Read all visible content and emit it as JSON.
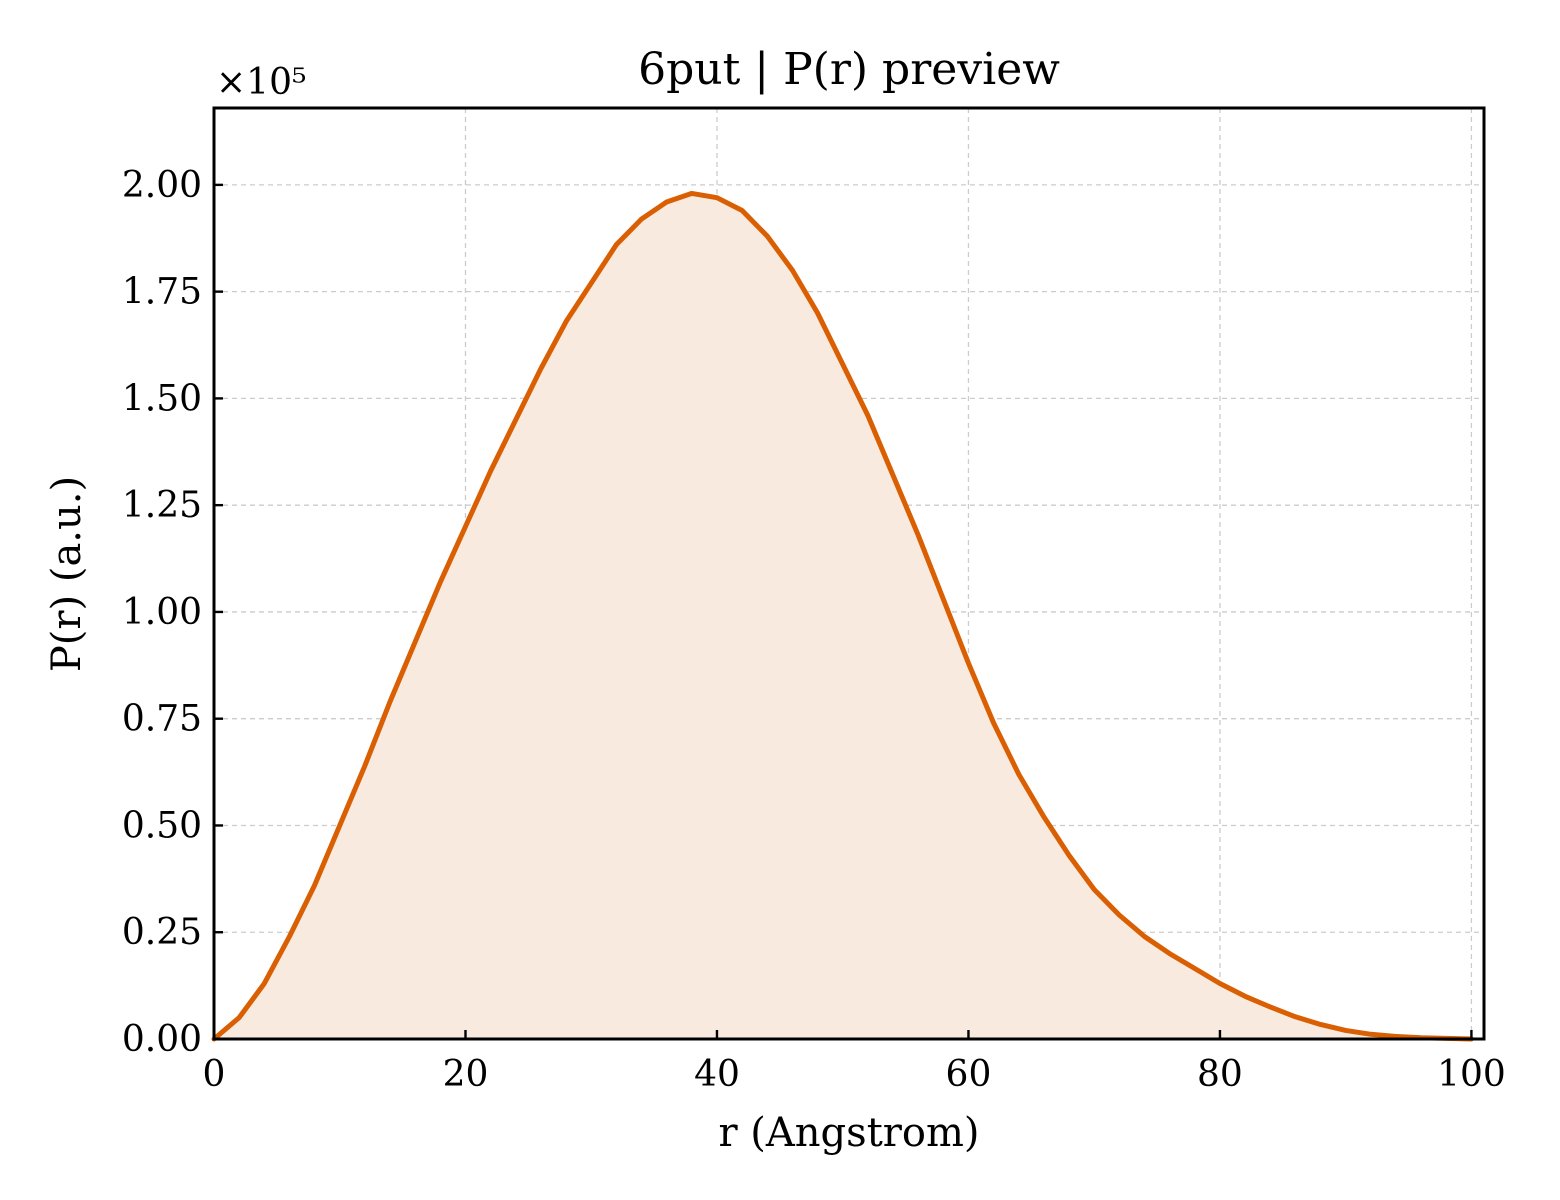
{
  "chart_data": {
    "type": "area",
    "title": "6put | P(r) preview",
    "xlabel": "r (Angstrom)",
    "ylabel": "P(r) (a.u.)",
    "y_multiplier_label": "×10⁵",
    "y_scale": 100000,
    "xlim": [
      0,
      101
    ],
    "ylim": [
      0,
      218000
    ],
    "x_ticks": [
      0,
      20,
      40,
      60,
      80,
      100
    ],
    "x_tick_labels": [
      "0",
      "20",
      "40",
      "60",
      "80",
      "100"
    ],
    "y_ticks": [
      0,
      25000,
      50000,
      75000,
      100000,
      125000,
      150000,
      175000,
      200000
    ],
    "y_tick_labels": [
      "0.00",
      "0.25",
      "0.50",
      "0.75",
      "1.00",
      "1.25",
      "1.50",
      "1.75",
      "2.00"
    ],
    "grid": true,
    "colors": {
      "line": "#d95f02",
      "fill": "#f9eadf"
    },
    "series": [
      {
        "x": [
          0,
          2,
          4,
          6,
          8,
          10,
          12,
          14,
          16,
          18,
          20,
          22,
          24,
          26,
          28,
          30,
          32,
          34,
          36,
          38,
          40,
          42,
          44,
          46,
          48,
          50,
          52,
          54,
          56,
          58,
          60,
          62,
          64,
          66,
          68,
          70,
          72,
          74,
          76,
          78,
          80,
          82,
          84,
          86,
          88,
          90,
          92,
          94,
          96,
          98,
          100
        ],
        "y": [
          0,
          5000,
          13000,
          24000,
          36000,
          50000,
          64000,
          79000,
          93000,
          107000,
          120000,
          133000,
          145000,
          157000,
          168000,
          177000,
          186000,
          192000,
          196000,
          198000,
          197000,
          194000,
          188000,
          180000,
          170000,
          158000,
          146000,
          132000,
          118000,
          103000,
          88000,
          74000,
          62000,
          52000,
          43000,
          35000,
          29000,
          24000,
          20000,
          16500,
          13000,
          10000,
          7500,
          5200,
          3400,
          2000,
          1100,
          600,
          300,
          150,
          0
        ]
      }
    ]
  }
}
